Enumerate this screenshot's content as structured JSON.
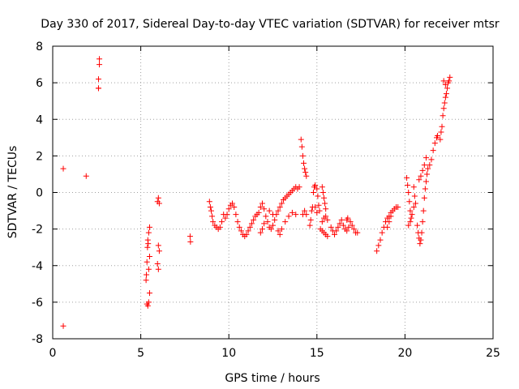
{
  "chart_data": {
    "type": "scatter",
    "title": "Day 330 of 2017, Sidereal Day-to-day VTEC variation (SDTVAR) for receiver mtsr",
    "xlabel": "GPS time / hours",
    "ylabel": "SDTVAR / TECUs",
    "xlim": [
      0,
      25
    ],
    "ylim": [
      -8,
      8
    ],
    "xticks": [
      0,
      5,
      10,
      15,
      20,
      25
    ],
    "yticks": [
      -8,
      -6,
      -4,
      -2,
      0,
      2,
      4,
      6,
      8
    ],
    "grid": true,
    "marker": "+",
    "color": "#ff0000",
    "series": [
      {
        "name": "SDTVAR",
        "points": [
          [
            0.6,
            1.3
          ],
          [
            0.6,
            -7.3
          ],
          [
            1.9,
            0.9
          ],
          [
            2.6,
            5.7
          ],
          [
            2.6,
            6.2
          ],
          [
            2.65,
            7.0
          ],
          [
            2.65,
            7.3
          ],
          [
            2.6,
            5.7
          ],
          [
            5.3,
            -4.8
          ],
          [
            5.32,
            -4.5
          ],
          [
            5.35,
            -3.8
          ],
          [
            5.38,
            -3.0
          ],
          [
            5.4,
            -2.6
          ],
          [
            5.45,
            -2.2
          ],
          [
            5.5,
            -1.9
          ],
          [
            5.35,
            -6.1
          ],
          [
            5.4,
            -6.2
          ],
          [
            5.45,
            -6.0
          ],
          [
            5.5,
            -5.5
          ],
          [
            5.45,
            -4.2
          ],
          [
            5.5,
            -3.5
          ],
          [
            5.42,
            -2.8
          ],
          [
            5.95,
            -0.5
          ],
          [
            6.0,
            -0.3
          ],
          [
            6.05,
            -0.6
          ],
          [
            6.0,
            -2.9
          ],
          [
            6.05,
            -3.2
          ],
          [
            5.95,
            -3.9
          ],
          [
            6.0,
            -4.2
          ],
          [
            7.8,
            -2.4
          ],
          [
            7.82,
            -2.7
          ],
          [
            8.9,
            -0.5
          ],
          [
            8.95,
            -0.8
          ],
          [
            9.0,
            -1.0
          ],
          [
            9.05,
            -1.3
          ],
          [
            9.1,
            -1.6
          ],
          [
            9.2,
            -1.8
          ],
          [
            9.3,
            -1.9
          ],
          [
            9.4,
            -2.0
          ],
          [
            9.5,
            -1.9
          ],
          [
            9.6,
            -1.6
          ],
          [
            9.7,
            -1.2
          ],
          [
            9.8,
            -1.4
          ],
          [
            9.9,
            -1.2
          ],
          [
            10.0,
            -0.9
          ],
          [
            10.1,
            -0.7
          ],
          [
            10.2,
            -0.6
          ],
          [
            10.3,
            -0.8
          ],
          [
            10.4,
            -1.2
          ],
          [
            10.5,
            -1.6
          ],
          [
            10.6,
            -1.9
          ],
          [
            10.7,
            -2.1
          ],
          [
            10.8,
            -2.3
          ],
          [
            10.9,
            -2.4
          ],
          [
            11.0,
            -2.3
          ],
          [
            11.1,
            -2.1
          ],
          [
            11.2,
            -1.9
          ],
          [
            11.3,
            -1.7
          ],
          [
            11.4,
            -1.5
          ],
          [
            11.5,
            -1.3
          ],
          [
            11.6,
            -1.2
          ],
          [
            11.7,
            -1.1
          ],
          [
            11.8,
            -0.8
          ],
          [
            11.9,
            -0.6
          ],
          [
            12.0,
            -0.9
          ],
          [
            12.1,
            -1.3
          ],
          [
            12.2,
            -1.6
          ],
          [
            12.3,
            -1.9
          ],
          [
            12.4,
            -2.0
          ],
          [
            12.5,
            -1.8
          ],
          [
            12.6,
            -1.5
          ],
          [
            12.7,
            -1.2
          ],
          [
            12.8,
            -1.0
          ],
          [
            12.9,
            -0.8
          ],
          [
            13.0,
            -0.6
          ],
          [
            13.1,
            -0.4
          ],
          [
            13.2,
            -0.3
          ],
          [
            13.3,
            -0.2
          ],
          [
            13.4,
            -0.1
          ],
          [
            13.5,
            0.0
          ],
          [
            13.6,
            0.1
          ],
          [
            13.7,
            0.2
          ],
          [
            13.8,
            0.3
          ],
          [
            13.9,
            0.2
          ],
          [
            14.0,
            0.3
          ],
          [
            11.8,
            -2.2
          ],
          [
            11.9,
            -2.0
          ],
          [
            12.0,
            -1.7
          ],
          [
            12.3,
            -1.0
          ],
          [
            12.5,
            -1.2
          ],
          [
            12.8,
            -2.1
          ],
          [
            12.9,
            -2.3
          ],
          [
            13.0,
            -2.0
          ],
          [
            13.2,
            -1.6
          ],
          [
            13.4,
            -1.3
          ],
          [
            13.6,
            -1.1
          ],
          [
            13.8,
            -1.2
          ],
          [
            14.1,
            2.9
          ],
          [
            14.15,
            2.5
          ],
          [
            14.2,
            2.0
          ],
          [
            14.25,
            1.6
          ],
          [
            14.3,
            1.3
          ],
          [
            14.35,
            1.1
          ],
          [
            14.4,
            0.9
          ],
          [
            14.2,
            -1.2
          ],
          [
            14.3,
            -1.0
          ],
          [
            14.4,
            -1.2
          ],
          [
            14.6,
            -1.8
          ],
          [
            14.65,
            -1.5
          ],
          [
            14.7,
            -1.0
          ],
          [
            14.75,
            -0.8
          ],
          [
            14.8,
            0.0
          ],
          [
            14.85,
            0.3
          ],
          [
            14.9,
            0.4
          ],
          [
            15.0,
            0.2
          ],
          [
            15.05,
            -0.2
          ],
          [
            15.1,
            -0.7
          ],
          [
            15.15,
            -1.0
          ],
          [
            14.9,
            -0.8
          ],
          [
            15.0,
            -1.1
          ],
          [
            15.2,
            -2.0
          ],
          [
            15.3,
            -2.1
          ],
          [
            15.4,
            -2.2
          ],
          [
            15.5,
            -2.3
          ],
          [
            15.6,
            -2.4
          ],
          [
            15.3,
            -1.6
          ],
          [
            15.4,
            -1.4
          ],
          [
            15.5,
            -1.3
          ],
          [
            15.6,
            -1.5
          ],
          [
            15.3,
            0.3
          ],
          [
            15.35,
            0.0
          ],
          [
            15.4,
            -0.3
          ],
          [
            15.45,
            -0.6
          ],
          [
            15.5,
            -0.9
          ],
          [
            15.8,
            -1.9
          ],
          [
            15.9,
            -2.1
          ],
          [
            16.0,
            -2.3
          ],
          [
            16.1,
            -2.1
          ],
          [
            16.2,
            -1.9
          ],
          [
            16.3,
            -1.7
          ],
          [
            16.4,
            -1.5
          ],
          [
            16.5,
            -1.8
          ],
          [
            16.6,
            -2.0
          ],
          [
            16.7,
            -2.1
          ],
          [
            16.8,
            -1.9
          ],
          [
            16.9,
            -1.6
          ],
          [
            17.0,
            -1.8
          ],
          [
            17.1,
            -2.0
          ],
          [
            17.2,
            -2.2
          ],
          [
            17.3,
            -2.2
          ],
          [
            16.7,
            -1.5
          ],
          [
            16.75,
            -1.4
          ],
          [
            18.4,
            -3.2
          ],
          [
            18.5,
            -2.9
          ],
          [
            18.6,
            -2.6
          ],
          [
            18.7,
            -2.2
          ],
          [
            18.8,
            -1.9
          ],
          [
            18.9,
            -1.6
          ],
          [
            19.0,
            -1.4
          ],
          [
            19.1,
            -1.3
          ],
          [
            19.2,
            -1.1
          ],
          [
            19.3,
            -1.0
          ],
          [
            19.4,
            -0.9
          ],
          [
            19.5,
            -0.8
          ],
          [
            19.6,
            -0.8
          ],
          [
            19.0,
            -1.9
          ],
          [
            19.1,
            -1.6
          ],
          [
            19.2,
            -1.3
          ],
          [
            20.1,
            0.8
          ],
          [
            20.15,
            0.4
          ],
          [
            20.2,
            0.0
          ],
          [
            20.25,
            -0.5
          ],
          [
            20.3,
            -1.0
          ],
          [
            20.35,
            -1.4
          ],
          [
            20.2,
            -1.8
          ],
          [
            20.3,
            -1.6
          ],
          [
            20.4,
            -1.2
          ],
          [
            20.5,
            -0.8
          ],
          [
            20.5,
            0.3
          ],
          [
            20.55,
            -0.2
          ],
          [
            20.6,
            -0.6
          ],
          [
            20.7,
            -1.8
          ],
          [
            20.75,
            -2.2
          ],
          [
            20.8,
            -2.5
          ],
          [
            20.85,
            -2.8
          ],
          [
            20.9,
            -2.6
          ],
          [
            20.95,
            -2.2
          ],
          [
            21.0,
            -1.6
          ],
          [
            21.05,
            -1.0
          ],
          [
            21.1,
            -0.3
          ],
          [
            21.15,
            0.2
          ],
          [
            21.2,
            0.6
          ],
          [
            21.25,
            1.0
          ],
          [
            21.3,
            1.3
          ],
          [
            21.4,
            1.5
          ],
          [
            21.5,
            1.8
          ],
          [
            21.6,
            2.3
          ],
          [
            21.7,
            2.7
          ],
          [
            21.8,
            3.0
          ],
          [
            21.85,
            3.1
          ],
          [
            20.8,
            0.7
          ],
          [
            20.9,
            0.9
          ],
          [
            21.0,
            1.2
          ],
          [
            21.1,
            1.5
          ],
          [
            21.2,
            1.9
          ],
          [
            22.0,
            2.9
          ],
          [
            22.05,
            3.3
          ],
          [
            22.1,
            3.6
          ],
          [
            22.15,
            4.2
          ],
          [
            22.2,
            4.6
          ],
          [
            22.25,
            4.9
          ],
          [
            22.3,
            5.2
          ],
          [
            22.35,
            5.4
          ],
          [
            22.4,
            5.7
          ],
          [
            22.45,
            6.0
          ],
          [
            22.5,
            6.1
          ],
          [
            22.55,
            6.3
          ],
          [
            22.2,
            6.1
          ],
          [
            22.3,
            5.9
          ]
        ]
      }
    ]
  }
}
